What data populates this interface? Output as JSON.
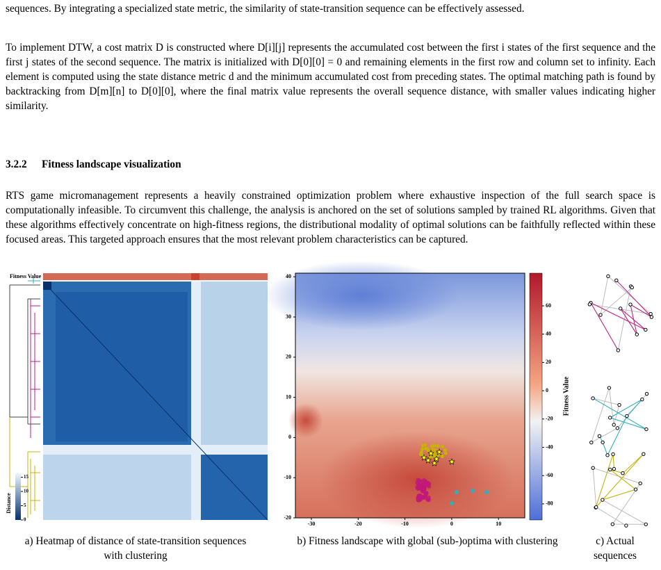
{
  "paragraphs": [
    "sequences. By integrating a specialized state metric, the similarity of state-transition sequence can be effectively assessed.",
    "To implement DTW, a cost matrix D is constructed where D[i][j] represents the accumulated cost between the first i states of the first sequence and the first j states of the second sequence. The matrix is initialized with D[0][0] = 0 and remaining elements in the first row and column set to infinity. Each element is computed using the state distance metric d and the minimum accumulated cost from preceding states. The optimal matching path is found by backtracking from D[m][n] to D[0][0], where the final matrix value represents the overall sequence distance, with smaller values indicating higher similarity."
  ],
  "section": {
    "number": "3.2.2",
    "title": "Fitness landscape visualization"
  },
  "section_paragraph": "RTS game micromanagement represents a heavily constrained optimization problem where exhaustive inspection of the full search space is computationally infeasible. To circumvent this challenge, the analysis is anchored on the set of solutions sampled by trained RL algorithms. Given that these algorithms effectively concentrate on high-fitness regions, the distributional modality of optimal solutions can be faithfully reflected within these focused areas. This targeted approach ensures that the most relevant problem characteristics can be captured.",
  "figure": {
    "heatmap": {
      "caption": "a) Heatmap of distance of state-transition sequences with clustering",
      "fitness_label": "Fitness Value",
      "colorbar_label": "Distance",
      "colorbar_ticks": [
        0,
        5,
        10,
        15
      ]
    },
    "landscape": {
      "caption": "b) Fitness landscape with global (sub-)optima with clustering",
      "xticks": [
        -30,
        -20,
        -10,
        0,
        10
      ],
      "yticks": [
        -20,
        -10,
        0,
        10,
        20,
        30,
        40
      ],
      "colorbar_label": "Fitness Value",
      "colorbar_ticks": [
        -80,
        -60,
        -40,
        -20,
        0,
        20,
        40,
        60
      ]
    },
    "sequences": {
      "caption": "c) Actual sequences"
    }
  }
}
